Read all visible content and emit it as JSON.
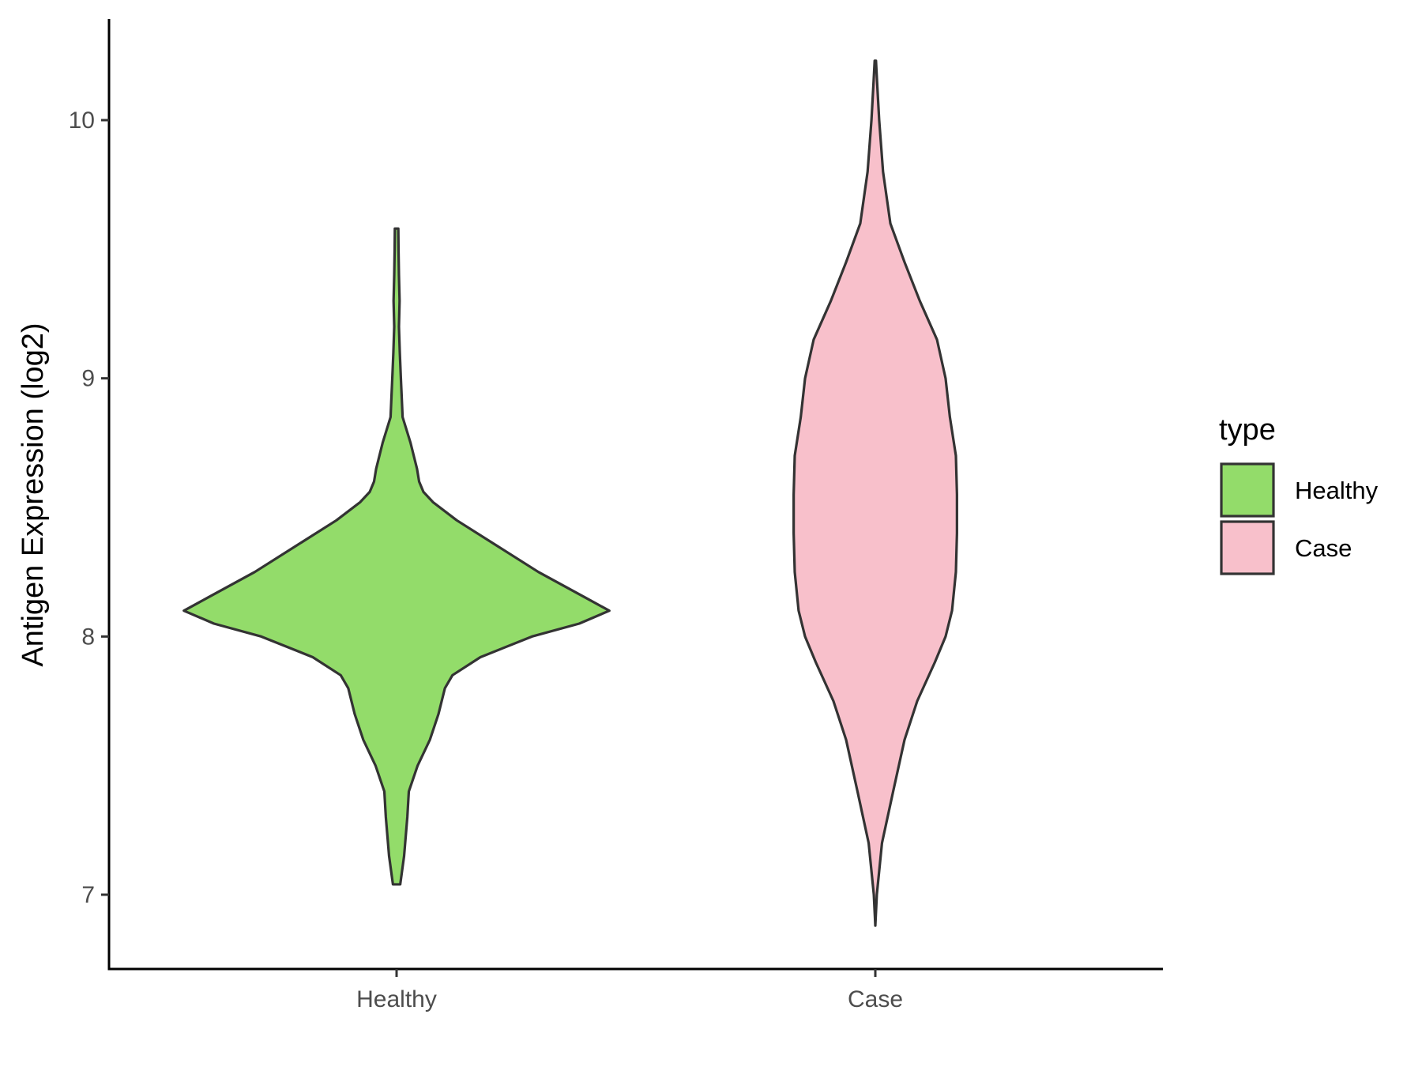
{
  "chart_data": {
    "type": "violin",
    "title": "",
    "xlabel": "",
    "ylabel": "Antigen Expression (log2)",
    "categories": [
      "Healthy",
      "Case"
    ],
    "ylim": [
      6.7,
      10.4
    ],
    "yticks": [
      7,
      8,
      9,
      10
    ],
    "grid": false,
    "legend": {
      "title": "type",
      "placement": "right",
      "entries": [
        {
          "label": "Healthy",
          "color": "#93dc6a"
        },
        {
          "label": "Case",
          "color": "#f8c0cb"
        }
      ]
    },
    "series": [
      {
        "category": "Healthy",
        "color": "#93dc6a",
        "min": 7.04,
        "max": 9.58,
        "density_profile": [
          [
            7.04,
            0.017
          ],
          [
            7.15,
            0.035
          ],
          [
            7.3,
            0.05
          ],
          [
            7.4,
            0.057
          ],
          [
            7.5,
            0.098
          ],
          [
            7.6,
            0.155
          ],
          [
            7.7,
            0.195
          ],
          [
            7.8,
            0.225
          ],
          [
            7.85,
            0.26
          ],
          [
            7.92,
            0.39
          ],
          [
            8.0,
            0.63
          ],
          [
            8.05,
            0.85
          ],
          [
            8.1,
            0.99
          ],
          [
            8.15,
            0.88
          ],
          [
            8.25,
            0.66
          ],
          [
            8.35,
            0.47
          ],
          [
            8.45,
            0.28
          ],
          [
            8.52,
            0.17
          ],
          [
            8.56,
            0.125
          ],
          [
            8.6,
            0.105
          ],
          [
            8.65,
            0.095
          ],
          [
            8.75,
            0.065
          ],
          [
            8.85,
            0.028
          ],
          [
            9.0,
            0.02
          ],
          [
            9.1,
            0.015
          ],
          [
            9.2,
            0.011
          ],
          [
            9.3,
            0.014
          ],
          [
            9.4,
            0.011
          ],
          [
            9.5,
            0.009
          ],
          [
            9.58,
            0.008
          ]
        ]
      },
      {
        "category": "Case",
        "color": "#f8c0cb",
        "min": 6.88,
        "max": 10.23,
        "density_profile": [
          [
            6.88,
            0.0
          ],
          [
            7.0,
            0.007
          ],
          [
            7.2,
            0.031
          ],
          [
            7.4,
            0.083
          ],
          [
            7.6,
            0.136
          ],
          [
            7.75,
            0.195
          ],
          [
            7.9,
            0.277
          ],
          [
            8.0,
            0.327
          ],
          [
            8.1,
            0.357
          ],
          [
            8.25,
            0.375
          ],
          [
            8.4,
            0.38
          ],
          [
            8.55,
            0.38
          ],
          [
            8.7,
            0.375
          ],
          [
            8.85,
            0.347
          ],
          [
            9.0,
            0.327
          ],
          [
            9.15,
            0.287
          ],
          [
            9.3,
            0.207
          ],
          [
            9.45,
            0.136
          ],
          [
            9.6,
            0.07
          ],
          [
            9.8,
            0.036
          ],
          [
            10.0,
            0.018
          ],
          [
            10.15,
            0.008
          ],
          [
            10.23,
            0.003
          ]
        ]
      }
    ]
  }
}
